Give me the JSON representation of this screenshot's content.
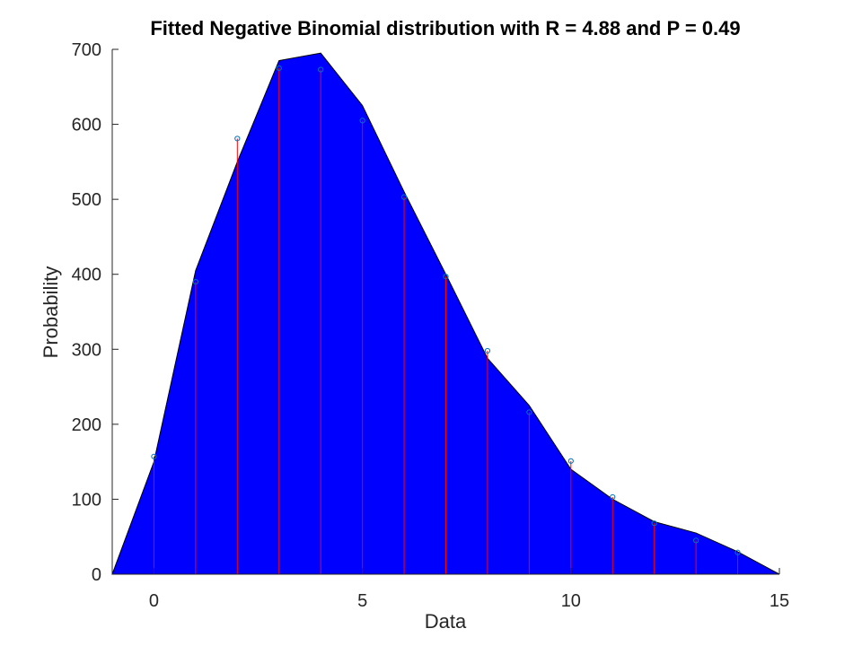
{
  "chart_data": {
    "type": "area",
    "title": "Fitted Negative Binomial distribution with R = 4.88 and P = 0.49",
    "xlabel": "Data",
    "ylabel": "Probability",
    "xlim": [
      -1,
      15
    ],
    "ylim": [
      0,
      700
    ],
    "xticks": [
      0,
      5,
      10,
      15
    ],
    "yticks": [
      0,
      100,
      200,
      300,
      400,
      500,
      600,
      700
    ],
    "grid": false,
    "legend": "none",
    "colors": {
      "area": "#0000ff",
      "stem": "#ff0000",
      "marker": "#0072bd",
      "axis": "#262626"
    },
    "series": [
      {
        "kind": "fitted-area",
        "x": [
          -1,
          0,
          1,
          2,
          3,
          4,
          5,
          6,
          7,
          8,
          9,
          10,
          11,
          12,
          13,
          14,
          15
        ],
        "values": [
          0,
          150,
          405,
          550,
          685,
          695,
          625,
          510,
          400,
          288,
          225,
          140,
          100,
          70,
          55,
          30,
          0
        ]
      },
      {
        "kind": "observed-stem",
        "x": [
          0,
          1,
          2,
          3,
          4,
          5,
          6,
          7,
          8,
          9,
          10,
          11,
          12,
          13,
          14
        ],
        "values": [
          157,
          390,
          581,
          675,
          673,
          605,
          503,
          397,
          298,
          216,
          151,
          103,
          68,
          45,
          29
        ]
      }
    ]
  }
}
